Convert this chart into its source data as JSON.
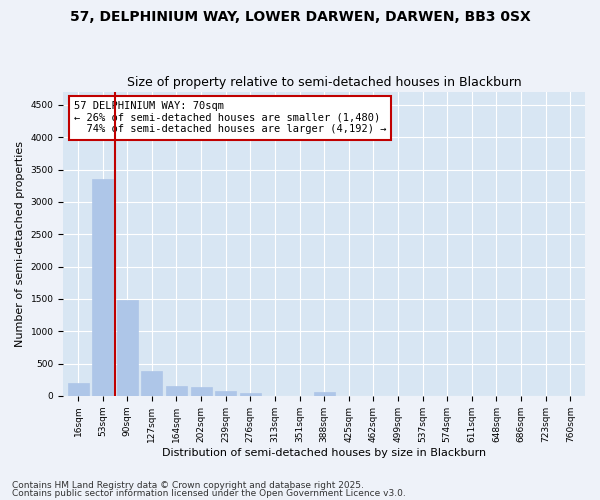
{
  "title1": "57, DELPHINIUM WAY, LOWER DARWEN, DARWEN, BB3 0SX",
  "title2": "Size of property relative to semi-detached houses in Blackburn",
  "xlabel": "Distribution of semi-detached houses by size in Blackburn",
  "ylabel": "Number of semi-detached properties",
  "categories": [
    "16sqm",
    "53sqm",
    "90sqm",
    "127sqm",
    "164sqm",
    "202sqm",
    "239sqm",
    "276sqm",
    "313sqm",
    "351sqm",
    "388sqm",
    "425sqm",
    "462sqm",
    "499sqm",
    "537sqm",
    "574sqm",
    "611sqm",
    "648sqm",
    "686sqm",
    "723sqm",
    "760sqm"
  ],
  "values": [
    200,
    3350,
    1480,
    380,
    160,
    130,
    70,
    40,
    0,
    0,
    60,
    0,
    0,
    0,
    0,
    0,
    0,
    0,
    0,
    0,
    0
  ],
  "bar_color": "#aec6e8",
  "highlight_color": "#c00000",
  "annotation_line1": "57 DELPHINIUM WAY: 70sqm",
  "annotation_line2": "← 26% of semi-detached houses are smaller (1,480)",
  "annotation_line3": "  74% of semi-detached houses are larger (4,192) →",
  "ylim": [
    0,
    4700
  ],
  "yticks": [
    0,
    500,
    1000,
    1500,
    2000,
    2500,
    3000,
    3500,
    4000,
    4500
  ],
  "footer1": "Contains HM Land Registry data © Crown copyright and database right 2025.",
  "footer2": "Contains public sector information licensed under the Open Government Licence v3.0.",
  "bg_color": "#eef2f9",
  "plot_bg_color": "#d8e6f3",
  "grid_color": "#ffffff",
  "title1_fontsize": 10,
  "title2_fontsize": 9,
  "annotation_fontsize": 7.5,
  "tick_fontsize": 6.5,
  "label_fontsize": 8,
  "footer_fontsize": 6.5
}
